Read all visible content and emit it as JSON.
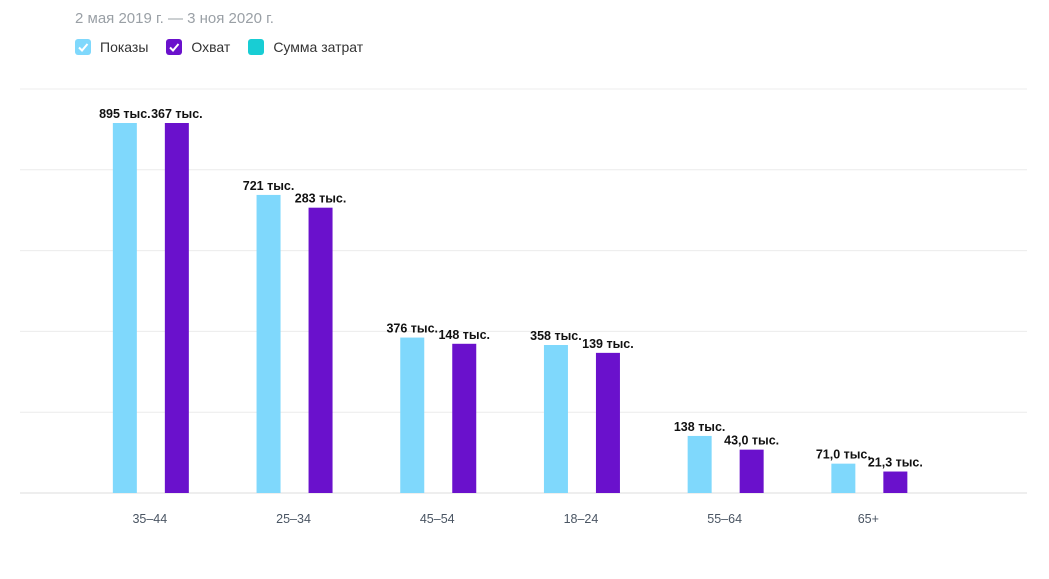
{
  "date_range": "2 мая 2019 г. — 3 ноя 2020 г.",
  "legend": [
    {
      "label": "Показы",
      "color": "#7fd8fc",
      "checked": true,
      "icon": "check-icon"
    },
    {
      "label": "Охват",
      "color": "#6a11cc",
      "checked": true,
      "icon": "check-icon"
    },
    {
      "label": "Сумма затрат",
      "color": "#18cdd4",
      "checked": false
    }
  ],
  "chart_data": {
    "type": "bar",
    "categories": [
      "35–44",
      "25–34",
      "45–54",
      "18–24",
      "55–64",
      "65+"
    ],
    "series": [
      {
        "name": "Показы",
        "color": "#7fd8fc",
        "values": [
          895000,
          721000,
          376000,
          358000,
          138000,
          71000
        ],
        "labels": [
          "895 тыс.",
          "721 тыс.",
          "376 тыс.",
          "358 тыс.",
          "138 тыс.",
          "71,0 тыс."
        ]
      },
      {
        "name": "Охват",
        "color": "#6a11cc",
        "values": [
          367000,
          283000,
          148000,
          139000,
          43000,
          21300
        ],
        "labels": [
          "367 тыс.",
          "283 тыс.",
          "148 тыс.",
          "139 тыс.",
          "43,0 тыс.",
          "21,3 тыс."
        ]
      }
    ],
    "secondary_axis_series": "Охват",
    "grid": true,
    "legend_position": "top-left"
  }
}
